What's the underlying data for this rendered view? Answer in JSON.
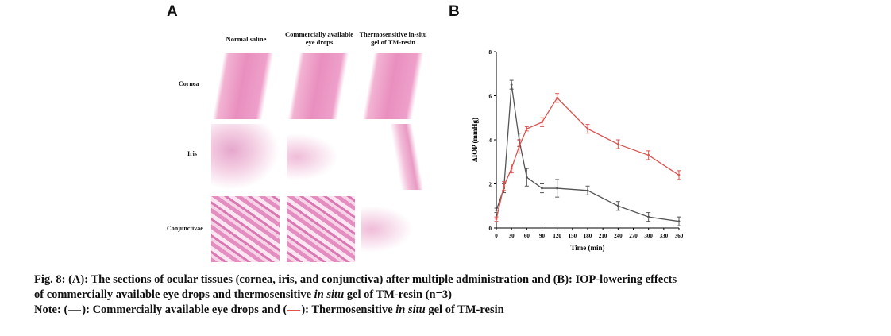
{
  "panel_a": {
    "letter": "A",
    "columns": [
      "Normal saline",
      "Commercially available eye drops",
      "Thermosensitive in-situ gel of TM-resin"
    ],
    "rows": [
      "Cornea",
      "Iris",
      "Conjunctivae"
    ]
  },
  "panel_b": {
    "letter": "B"
  },
  "chart_data": {
    "type": "line",
    "xlabel": "Time (min)",
    "ylabel": "ΔIOP (mmHg)",
    "xlim": [
      0,
      360
    ],
    "ylim": [
      0,
      8
    ],
    "xticks": [
      0,
      30,
      60,
      90,
      120,
      150,
      180,
      210,
      240,
      270,
      300,
      330,
      360
    ],
    "yticks": [
      0,
      2,
      4,
      6,
      8
    ],
    "grid": false,
    "series": [
      {
        "name": "Commercially available eye drops",
        "color": "#555555",
        "x": [
          0,
          15,
          30,
          45,
          60,
          90,
          120,
          180,
          240,
          300,
          360
        ],
        "y": [
          0.8,
          1.8,
          6.5,
          4.0,
          2.3,
          1.8,
          1.8,
          1.7,
          1.0,
          0.5,
          0.3
        ],
        "err": [
          0.1,
          0.2,
          0.2,
          0.3,
          0.4,
          0.2,
          0.4,
          0.2,
          0.2,
          0.2,
          0.2
        ]
      },
      {
        "name": "Thermosensitive in situ gel of TM-resin",
        "color": "#d9534f",
        "x": [
          0,
          15,
          30,
          45,
          60,
          90,
          120,
          180,
          240,
          300,
          360
        ],
        "y": [
          0.4,
          1.9,
          2.7,
          3.7,
          4.5,
          4.8,
          5.9,
          4.5,
          3.8,
          3.3,
          2.4
        ],
        "err": [
          0.1,
          0.2,
          0.2,
          0.3,
          0.1,
          0.2,
          0.2,
          0.2,
          0.2,
          0.2,
          0.2
        ]
      }
    ]
  },
  "caption": {
    "line1": "Fig. 8: (A): The sections of ocular tissues (cornea, iris, and conjunctiva) after multiple administration and (B): IOP-lowering effects",
    "line2_pre": "of commercially available eye drops and thermosensitive ",
    "line2_ital": "in situ",
    "line2_post": " gel of TM-resin (n=3)",
    "note_pre": "Note: (",
    "note_mid1": "): Commercially available eye drops and (",
    "note_mid2": "): Thermosensitive ",
    "note_ital": "in situ",
    "note_post": " gel of TM-resin"
  }
}
